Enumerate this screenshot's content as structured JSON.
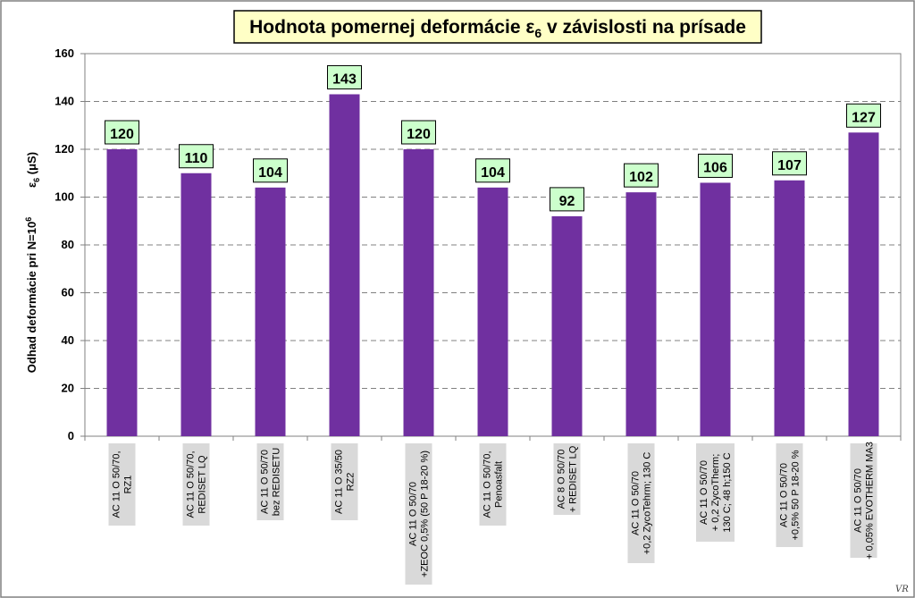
{
  "chart_data": {
    "type": "bar",
    "title": {
      "main": "Hodnota pomernej deformácie ε",
      "sub": "6",
      "rest": " v závislosti na prísade"
    },
    "ylabel": {
      "symbol": "ε",
      "symbol_sub": "6",
      "unit": "(μS)",
      "text": "Odhad deformácie pri N=10",
      "text_sup": "6"
    },
    "ylim": [
      0,
      160
    ],
    "yticks": [
      0,
      20,
      40,
      60,
      80,
      100,
      120,
      140,
      160
    ],
    "grid": true,
    "bar_color": "#7030a0",
    "categories": [
      [
        "AC 11 O 50/70,",
        "RZ1"
      ],
      [
        "AC 11 O 50/70,",
        "REDISET LQ"
      ],
      [
        "AC 11 O 50/70",
        "bez REDISETU"
      ],
      [
        "AC 11 O 35/50",
        "RZ2"
      ],
      [
        "AC 11 O 50/70",
        "+ZEOC 0,5% (50 P 18-20 %)"
      ],
      [
        "AC 11 O 50/70,",
        "Penoasfalt"
      ],
      [
        "AC 8 O 50/70",
        "+ REDISET LQ"
      ],
      [
        "AC 11 O 50/70",
        "+0,2 ZycoTehrm; 130 C"
      ],
      [
        "AC 11 O 50/70",
        "+ 0,2 ZycoTherm;",
        "130 C; 48 h;150 C"
      ],
      [
        "AC 11 O 50/70",
        "+0,5% 50 P 18-20 %"
      ],
      [
        "AC 11 O 50/70",
        "+ 0,05% EVOTHERM MA3"
      ]
    ],
    "values": [
      120,
      110,
      104,
      143,
      120,
      104,
      92,
      102,
      106,
      107,
      127
    ],
    "signature": "VR"
  }
}
